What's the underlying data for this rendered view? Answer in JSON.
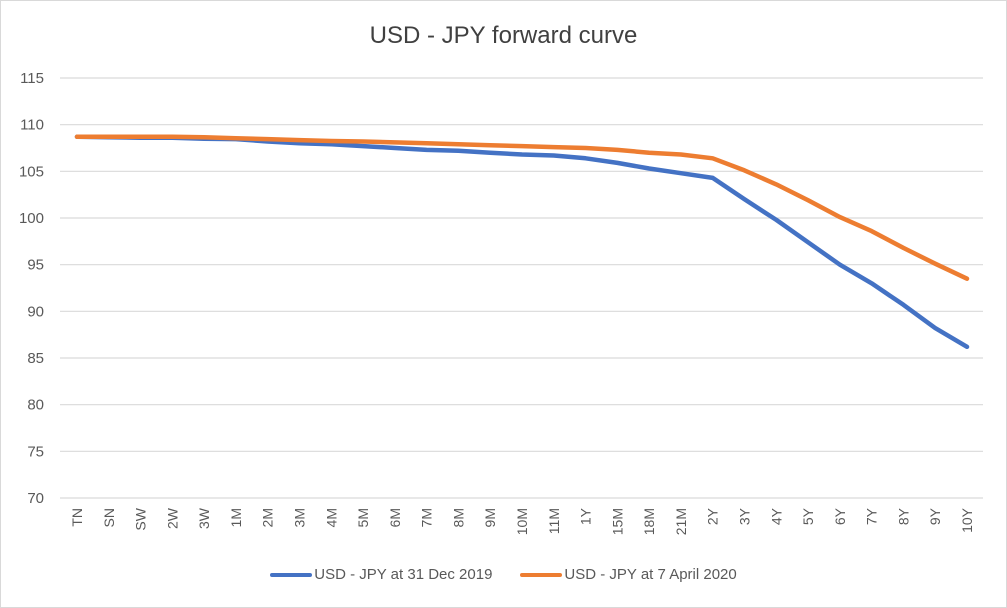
{
  "chart_data": {
    "type": "line",
    "title": "USD - JPY forward curve",
    "xlabel": "",
    "ylabel": "",
    "ylim": [
      70,
      115
    ],
    "yticks": [
      70,
      75,
      80,
      85,
      90,
      95,
      100,
      105,
      110,
      115
    ],
    "ytick_labels": [
      "70",
      "75",
      "80",
      "85",
      "90",
      "95",
      "100",
      "105",
      "110",
      "115"
    ],
    "grid": true,
    "legend_position": "bottom",
    "categories": [
      "TN",
      "SN",
      "SW",
      "2W",
      "3W",
      "1M",
      "2M",
      "3M",
      "4M",
      "5M",
      "6M",
      "7M",
      "8M",
      "9M",
      "10M",
      "11M",
      "1Y",
      "15M",
      "18M",
      "21M",
      "2Y",
      "3Y",
      "4Y",
      "5Y",
      "6Y",
      "7Y",
      "8Y",
      "9Y",
      "10Y"
    ],
    "series": [
      {
        "name": "USD - JPY at 31 Dec 2019",
        "color": "#4472c4",
        "values": [
          108.7,
          108.65,
          108.6,
          108.6,
          108.5,
          108.45,
          108.2,
          108.0,
          107.9,
          107.7,
          107.5,
          107.3,
          107.2,
          107.0,
          106.8,
          106.7,
          106.4,
          105.9,
          105.3,
          104.8,
          104.3,
          102.0,
          99.8,
          97.4,
          95.0,
          93.0,
          90.7,
          88.2,
          86.2
        ]
      },
      {
        "name": "USD - JPY at 7 April 2020",
        "color": "#ed7d31",
        "values": [
          108.7,
          108.7,
          108.7,
          108.7,
          108.65,
          108.55,
          108.45,
          108.35,
          108.25,
          108.2,
          108.1,
          108.0,
          107.9,
          107.8,
          107.7,
          107.6,
          107.5,
          107.3,
          107.0,
          106.8,
          106.4,
          105.1,
          103.6,
          101.9,
          100.1,
          98.6,
          96.8,
          95.1,
          93.5
        ]
      }
    ]
  }
}
